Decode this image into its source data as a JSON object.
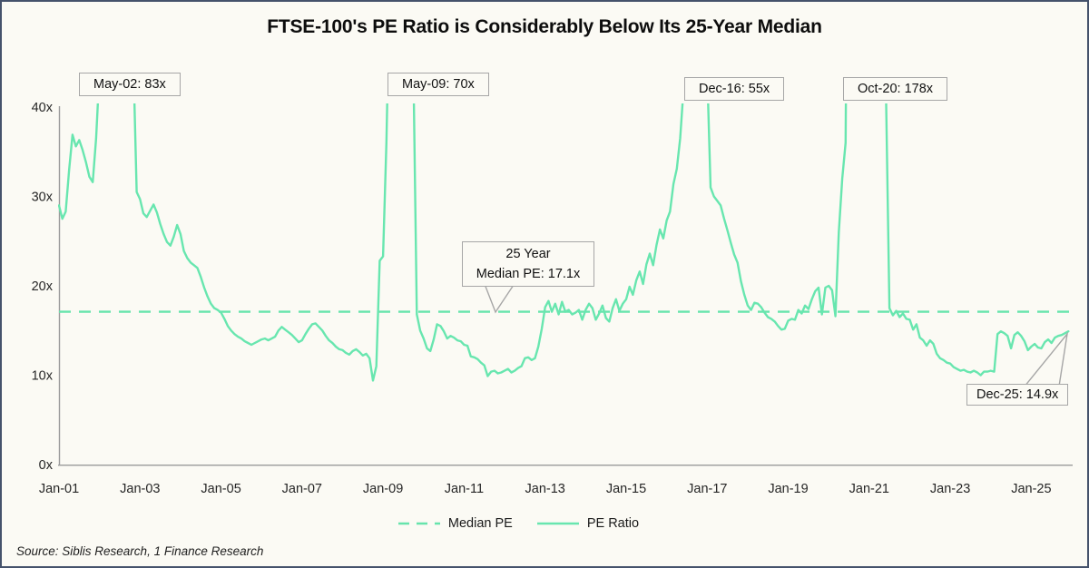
{
  "title": "FTSE-100's PE Ratio is Considerably Below Its 25-Year Median",
  "source": "Source: Siblis Research, 1 Finance Research",
  "colors": {
    "background": "#FBFAF4",
    "frame_border": "#45526B",
    "pe_line": "#68E6AF",
    "median_line": "#66E4AC",
    "axis": "#9a9a9a",
    "text": "#262626",
    "annotation_border": "#a6a6a6"
  },
  "chart_data": {
    "type": "line",
    "title": "FTSE-100's PE Ratio is Considerably Below Its 25-Year Median",
    "xlabel": "",
    "ylabel": "",
    "ylim": [
      0,
      40
    ],
    "grid": false,
    "x_tick_labels": [
      "Jan-01",
      "Jan-03",
      "Jan-05",
      "Jan-07",
      "Jan-09",
      "Jan-11",
      "Jan-13",
      "Jan-15",
      "Jan-17",
      "Jan-19",
      "Jan-21",
      "Jan-23",
      "Jan-25"
    ],
    "y_tick_values": [
      0,
      10,
      20,
      30,
      40
    ],
    "y_tick_labels": [
      "0x",
      "10x",
      "20x",
      "30x",
      "40x"
    ],
    "legend_position": "bottom-center",
    "series": [
      {
        "name": "Median PE",
        "style": "dashed",
        "value": 17.1
      },
      {
        "name": "PE Ratio",
        "style": "solid",
        "frequency": "monthly",
        "x_start": "Jan-2001",
        "x_end": "Dec-2025",
        "values": [
          29.0,
          27.5,
          28.3,
          33.0,
          36.9,
          35.6,
          36.3,
          35.2,
          33.8,
          32.2,
          31.6,
          36.5,
          44,
          52,
          62,
          72,
          83,
          80,
          76,
          70,
          63,
          55,
          46,
          30.5,
          29.7,
          28.1,
          27.7,
          28.4,
          29.1,
          28.2,
          26.9,
          25.8,
          24.9,
          24.5,
          25.5,
          26.8,
          25.8,
          23.9,
          23.1,
          22.6,
          22.3,
          22.0,
          21.0,
          19.8,
          18.8,
          18.0,
          17.5,
          17.3,
          17.0,
          16.3,
          15.5,
          15.0,
          14.6,
          14.3,
          14.1,
          13.8,
          13.6,
          13.4,
          13.6,
          13.8,
          14.0,
          14.1,
          13.9,
          14.1,
          14.3,
          15.0,
          15.4,
          15.1,
          14.8,
          14.5,
          14.1,
          13.7,
          13.9,
          14.6,
          15.2,
          15.7,
          15.8,
          15.4,
          15.0,
          14.4,
          13.9,
          13.6,
          13.2,
          12.9,
          12.8,
          12.5,
          12.3,
          12.7,
          12.9,
          12.6,
          12.2,
          12.4,
          11.9,
          9.4,
          11.0,
          22.8,
          23.3,
          36.0,
          55,
          62,
          70,
          68,
          66,
          61,
          53,
          44,
          16.8,
          15.0,
          14.1,
          13.0,
          12.7,
          14.0,
          15.7,
          15.5,
          14.9,
          14.1,
          14.4,
          14.2,
          13.9,
          13.8,
          13.4,
          13.3,
          12.1,
          12.0,
          11.8,
          11.4,
          11.1,
          9.9,
          10.4,
          10.5,
          10.2,
          10.3,
          10.5,
          10.7,
          10.3,
          10.5,
          10.8,
          11.0,
          11.9,
          12.0,
          11.7,
          11.9,
          13.2,
          15.2,
          17.6,
          18.3,
          17.1,
          18.0,
          16.8,
          18.2,
          17.1,
          17.3,
          16.8,
          17.0,
          17.3,
          16.2,
          17.3,
          18.0,
          17.5,
          16.2,
          16.9,
          17.8,
          16.4,
          16.0,
          17.5,
          18.5,
          17.2,
          18.0,
          18.5,
          19.9,
          19.0,
          20.6,
          21.6,
          20.2,
          22.4,
          23.6,
          22.3,
          24.6,
          26.3,
          25.3,
          27.3,
          28.3,
          31.4,
          33.1,
          36.5,
          42,
          46,
          50,
          53,
          55,
          54,
          55,
          44,
          31,
          30,
          29.5,
          29,
          27.5,
          26.2,
          24.8,
          23.5,
          22.6,
          20.5,
          19.0,
          17.8,
          17.3,
          18.1,
          18.0,
          17.6,
          17.0,
          16.5,
          16.3,
          16.0,
          15.5,
          15.1,
          15.2,
          16.1,
          16.3,
          16.2,
          17.3,
          16.9,
          17.8,
          17.4,
          18.5,
          19.4,
          19.8,
          16.8,
          19.8,
          20.0,
          19.5,
          16.6,
          26,
          32,
          36,
          90,
          130,
          160,
          178,
          170,
          150,
          130,
          90,
          62,
          50,
          44,
          41,
          17.5,
          16.7,
          17.2,
          16.5,
          16.9,
          16.3,
          16.2,
          15.1,
          15.7,
          14.2,
          13.9,
          13.3,
          13.9,
          13.5,
          12.4,
          11.9,
          11.7,
          11.4,
          11.3,
          10.9,
          10.7,
          10.5,
          10.6,
          10.4,
          10.3,
          10.5,
          10.3,
          10.0,
          10.4,
          10.4,
          10.5,
          10.4,
          14.6,
          14.9,
          14.7,
          14.4,
          13.0,
          14.5,
          14.8,
          14.4,
          13.8,
          12.8,
          13.2,
          13.5,
          13.1,
          13.0,
          13.7,
          14.0,
          13.6,
          14.2,
          14.4,
          14.5,
          14.7,
          14.9
        ]
      }
    ],
    "annotations": [
      {
        "id": "peak-2002",
        "label": "May-02: 83x"
      },
      {
        "id": "peak-2009",
        "label": "May-09: 70x"
      },
      {
        "id": "peak-2016",
        "label": "Dec-16: 55x"
      },
      {
        "id": "peak-2020",
        "label": "Oct-20: 178x"
      },
      {
        "id": "median-callout",
        "label_lines": [
          "25 Year",
          "Median PE: 17.1x"
        ]
      },
      {
        "id": "end-2025",
        "label": "Dec-25: 14.9x"
      }
    ]
  },
  "legend": [
    {
      "label": "Median PE",
      "style": "dashed"
    },
    {
      "label": "PE Ratio",
      "style": "solid"
    }
  ]
}
